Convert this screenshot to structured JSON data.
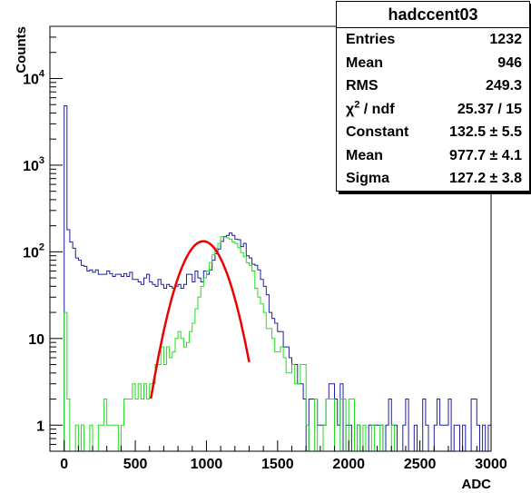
{
  "chart_data": {
    "type": "histogram",
    "title": "",
    "xlabel": "ADC",
    "ylabel": "Counts",
    "xlim": [
      -100,
      3000
    ],
    "ylim": [
      0.5,
      40000
    ],
    "yscale": "log",
    "grid": false,
    "x_ticks": [
      "0",
      "500",
      "1000",
      "1500",
      "2000",
      "2500",
      "3000"
    ],
    "y_ticks": [
      "1",
      "10",
      "10^2",
      "10^3",
      "10^4"
    ],
    "bin_width": 20,
    "x_start": -20,
    "series": [
      {
        "color": "#1f1fa0",
        "values": [
          0,
          4850,
          180,
          130,
          110,
          85,
          80,
          70,
          68,
          60,
          62,
          58,
          62,
          55,
          55,
          55,
          60,
          56,
          52,
          55,
          55,
          52,
          56,
          52,
          58,
          48,
          48,
          45,
          42,
          50,
          55,
          45,
          42,
          40,
          48,
          42,
          38,
          42,
          40,
          38,
          40,
          42,
          38,
          42,
          55,
          55,
          45,
          60,
          50,
          45,
          60,
          55,
          62,
          80,
          95,
          108,
          132,
          150,
          155,
          165,
          155,
          140,
          138,
          115,
          125,
          90,
          85,
          72,
          70,
          62,
          48,
          40,
          32,
          20,
          17,
          15,
          12,
          12,
          8,
          8,
          6,
          5,
          5,
          3,
          3,
          2,
          0.3,
          2,
          2,
          2,
          1,
          1,
          1,
          2,
          3,
          3,
          2,
          1,
          3,
          0.3,
          1,
          1,
          0.3,
          0.3,
          1,
          0.3,
          0.3,
          0.3,
          1,
          1,
          1,
          1,
          1,
          0.3,
          1,
          2,
          1,
          1,
          0.3,
          0.3,
          1,
          2,
          0.3,
          0.3,
          1,
          0.3,
          0.3,
          2,
          1,
          0.3,
          0.3,
          1,
          2,
          1,
          1,
          1,
          2,
          0.3,
          1,
          1,
          0.3,
          1,
          0.3,
          0.3,
          2,
          2,
          1,
          0.3,
          1,
          0.3,
          1,
          1,
          1,
          0.3,
          0.3,
          1,
          1,
          1
        ]
      },
      {
        "color": "#22dd22",
        "values": [
          0.3,
          20,
          2,
          0.3,
          0.3,
          1,
          0.3,
          1,
          0.3,
          0.3,
          1,
          0.3,
          0.3,
          1,
          1,
          2,
          1,
          1,
          1,
          1,
          0.3,
          1,
          2,
          2,
          2,
          3,
          2,
          3,
          2,
          3,
          2,
          3,
          3,
          5,
          5,
          8,
          5,
          8,
          6,
          7,
          10,
          12,
          10,
          8,
          9,
          12,
          15,
          22,
          30,
          40,
          50,
          60,
          75,
          92,
          110,
          125,
          150,
          148,
          145,
          140,
          130,
          125,
          112,
          98,
          88,
          75,
          70,
          60,
          38,
          30,
          25,
          20,
          13,
          13,
          10,
          7,
          7,
          8,
          6,
          4,
          4,
          5,
          3,
          3,
          5,
          5,
          1,
          0.3,
          0.3,
          2,
          0.3,
          0.3,
          1,
          2,
          2,
          2,
          0.3,
          0.3,
          2,
          2,
          0.3,
          2,
          2,
          0.3,
          1,
          0.3,
          1,
          0.3,
          0.3,
          1,
          0.3,
          0.3,
          1,
          0.3,
          0.3,
          0.3,
          1,
          0.3,
          0.3,
          0.3,
          0.3,
          0.3,
          0.3,
          0.3
        ]
      }
    ],
    "fit": {
      "type": "gaus",
      "color": "#ee0000",
      "constant": 132.5,
      "mean": 977.7,
      "sigma": 127.2,
      "range": [
        610,
        1300
      ]
    }
  },
  "stats": {
    "title": "hadccent03",
    "rows": [
      {
        "label": "Entries",
        "value": "1232"
      },
      {
        "label": "Mean",
        "value": "946"
      },
      {
        "label": "RMS",
        "value": "249.3"
      },
      {
        "label_pre": "χ",
        "label_sup": "2",
        "label_post": " / ndf",
        "value": "25.37 / 15"
      },
      {
        "label": "Constant",
        "value": "132.5 ± 5.5"
      },
      {
        "label": "Mean",
        "value": "977.7 ± 4.1"
      },
      {
        "label": "Sigma",
        "value": "127.2 ± 3.8"
      }
    ]
  }
}
